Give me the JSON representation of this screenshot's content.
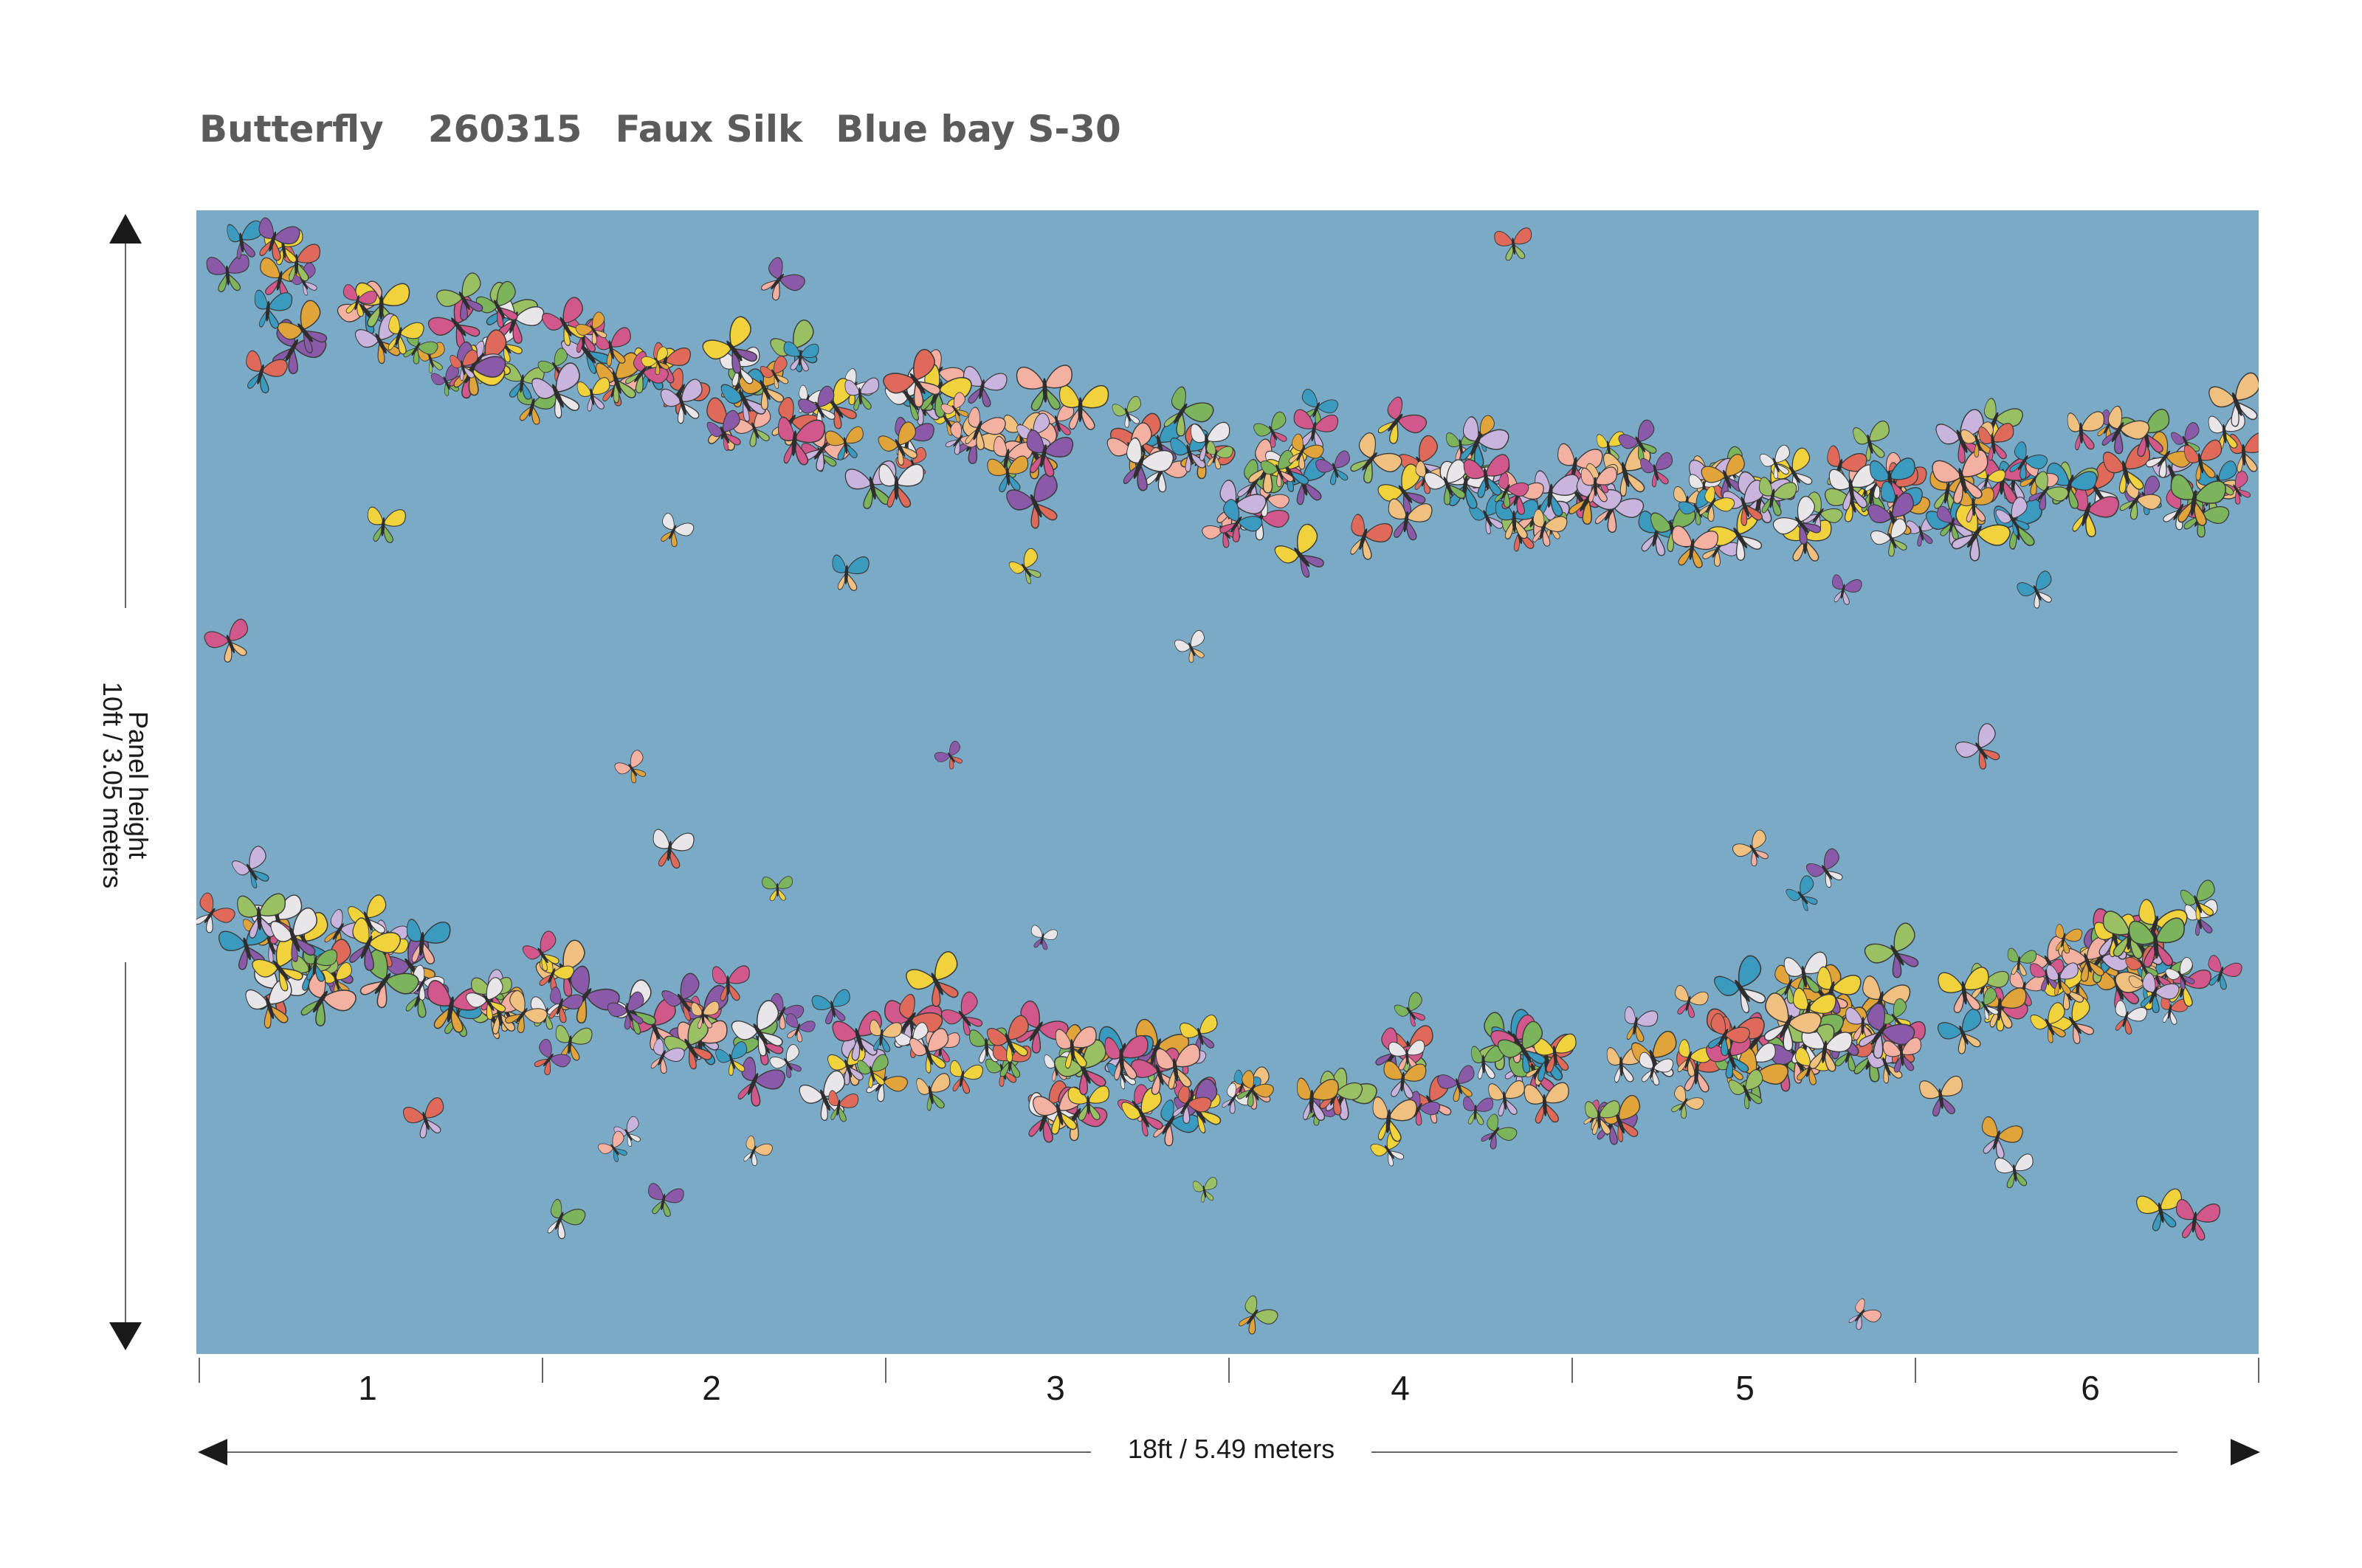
{
  "title": {
    "collection": "Butterfly",
    "code": "260315",
    "material": "Faux Silk",
    "colorway": "Blue bay S-30"
  },
  "panels": [
    "1",
    "2",
    "3",
    "4",
    "5",
    "6"
  ],
  "dimensions": {
    "width_label": "18ft / 5.49 meters",
    "height_label_line1": "Panel height",
    "height_label_line2": "10ft / 3.05 meters"
  },
  "colors": {
    "background": "#ffffff",
    "panel": "#7aaac6",
    "title_text": "#5b5b5b",
    "label_text": "#1a1a1a",
    "lines": "#666666",
    "arrows": "#1a1a1a",
    "butterflies": [
      "#e0a43a",
      "#d2578a",
      "#7bb45a",
      "#e9e6ea",
      "#c8b4dc",
      "#e06a5a",
      "#f0d23c",
      "#8a5aa8",
      "#3a9ac0",
      "#f4b0a0",
      "#9ac064",
      "#f0c080"
    ]
  },
  "artwork": {
    "pattern": "butterflies",
    "bands": 2
  }
}
